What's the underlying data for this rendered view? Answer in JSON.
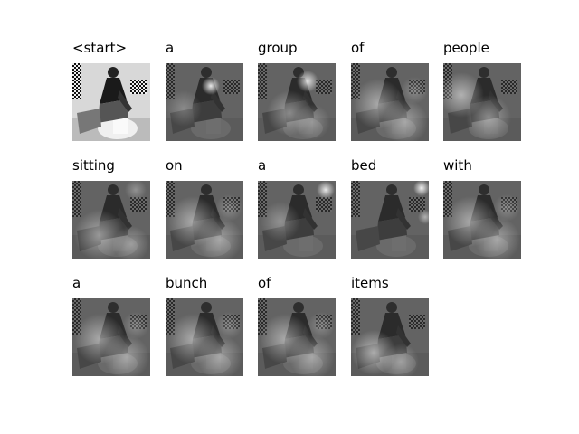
{
  "figure": {
    "panels": [
      {
        "word": "<start>",
        "attention": "none"
      },
      {
        "word": "a",
        "attention": "center-left"
      },
      {
        "word": "group",
        "attention": "upper-center"
      },
      {
        "word": "of",
        "attention": "diffuse"
      },
      {
        "word": "people",
        "attention": "diffuse-left"
      },
      {
        "word": "sitting",
        "attention": "diffuse-lower"
      },
      {
        "word": "on",
        "attention": "diffuse"
      },
      {
        "word": "a",
        "attention": "upper-right"
      },
      {
        "word": "bed",
        "attention": "upper-right-edge"
      },
      {
        "word": "with",
        "attention": "diffuse"
      },
      {
        "word": "a",
        "attention": "diffuse"
      },
      {
        "word": "bunch",
        "attention": "diffuse"
      },
      {
        "word": "of",
        "attention": "diffuse"
      },
      {
        "word": "items",
        "attention": "lower-left"
      }
    ]
  }
}
